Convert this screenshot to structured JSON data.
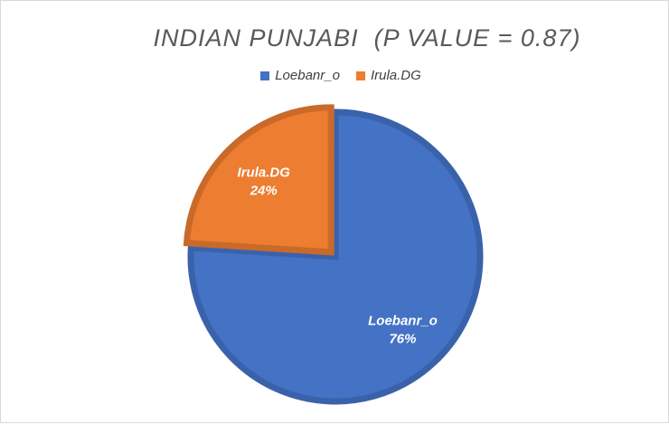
{
  "chart_data": {
    "type": "pie",
    "title": "INDIAN PUNJABI  (P VALUE = 0.87)",
    "series": [
      {
        "name": "Loebanr_o",
        "value": 76,
        "label": "76%",
        "color": "#4472c4",
        "border": "#3a62ab"
      },
      {
        "name": "Irula.DG",
        "value": 24,
        "label": "24%",
        "color": "#ed7d31",
        "border": "#c96a2a"
      }
    ],
    "legend_position": "top"
  }
}
